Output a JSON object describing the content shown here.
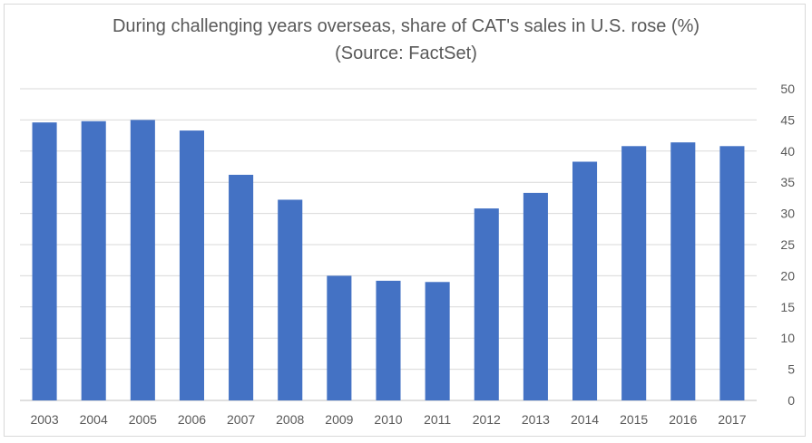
{
  "chart_data": {
    "type": "bar",
    "title": "During challenging years overseas, share of CAT's sales in U.S. rose (%)",
    "subtitle": "(Source: FactSet)",
    "categories": [
      "2003",
      "2004",
      "2005",
      "2006",
      "2007",
      "2008",
      "2009",
      "2010",
      "2011",
      "2012",
      "2013",
      "2014",
      "2015",
      "2016",
      "2017"
    ],
    "values": [
      44.6,
      44.8,
      45.0,
      43.3,
      36.2,
      32.2,
      20.0,
      19.2,
      19.0,
      30.8,
      33.3,
      38.3,
      40.8,
      41.4,
      40.8
    ],
    "ylim": [
      0,
      50
    ],
    "yticks": [
      0,
      5,
      10,
      15,
      20,
      25,
      30,
      35,
      40,
      45,
      50
    ],
    "bar_color": "#4472c4",
    "grid": true,
    "yaxis_side": "right"
  }
}
